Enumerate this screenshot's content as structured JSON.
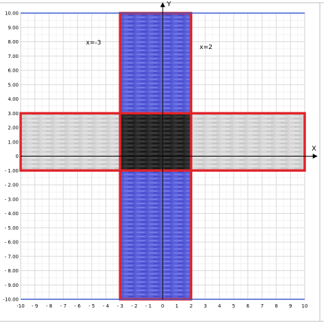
{
  "chart_data": {
    "type": "area",
    "xlabel": "X",
    "ylabel": "Y",
    "xlim": [
      -10,
      10
    ],
    "ylim": [
      -10,
      10
    ],
    "grid": true,
    "x_ticks": [
      -10,
      -9,
      -8,
      -7,
      -6,
      -5,
      -4,
      -3,
      -2,
      -1,
      0,
      1,
      2,
      3,
      4,
      5,
      6,
      7,
      8,
      9,
      10
    ],
    "y_ticks": [
      10,
      9,
      8,
      7,
      6,
      5,
      4,
      3,
      2,
      1,
      0,
      -1,
      -2,
      -3,
      -4,
      -5,
      -6,
      -7,
      -8,
      -9,
      -10
    ],
    "x_tick_labels": [
      "-10",
      "- 9",
      "- 8",
      "- 7",
      "- 6",
      "- 5",
      "- 4",
      "- 3",
      "- 2",
      "- 1",
      "0",
      "1",
      "2",
      "3",
      "4",
      "5",
      "6",
      "7",
      "8",
      "9",
      "10"
    ],
    "y_tick_labels": [
      "10.00",
      "9.00",
      "8.00",
      "7.00",
      "6.00",
      "5.00",
      "4.00",
      "3.00",
      "2.00",
      "1.00",
      "0",
      "- 1.00",
      "- 2.00",
      "- 3.00",
      "- 4.00",
      "- 5.00",
      "- 6.00",
      "- 7.00",
      "- 8.00",
      "- 9.00",
      "-10.00"
    ],
    "regions": [
      {
        "id": "vertical-strip",
        "x": [
          -3,
          2
        ],
        "y": [
          -10,
          10
        ],
        "fill": "#5a5fd9",
        "border": "#e0242b"
      },
      {
        "id": "horizontal-strip",
        "x": [
          -10,
          10
        ],
        "y": [
          -1,
          3
        ],
        "fill": "#d6d6d6",
        "border": "#e0242b"
      },
      {
        "id": "intersection",
        "x": [
          -3,
          2
        ],
        "y": [
          -1,
          3
        ],
        "fill": "#2a2a2a",
        "border": "#e0242b"
      }
    ],
    "boundary_lines": [
      {
        "y": 10,
        "color": "#3a5bd0"
      },
      {
        "y": -10,
        "color": "#3a5bd0"
      }
    ],
    "annotations": [
      {
        "text": "x=-3",
        "x": -5.4,
        "y": 7.8
      },
      {
        "text": "x=2",
        "x": 2.6,
        "y": 7.5
      }
    ]
  },
  "colors": {
    "grid": "#d9d9d9",
    "axis": "#000000",
    "outline": "#e0242b",
    "boundary": "#3a5bd0"
  }
}
